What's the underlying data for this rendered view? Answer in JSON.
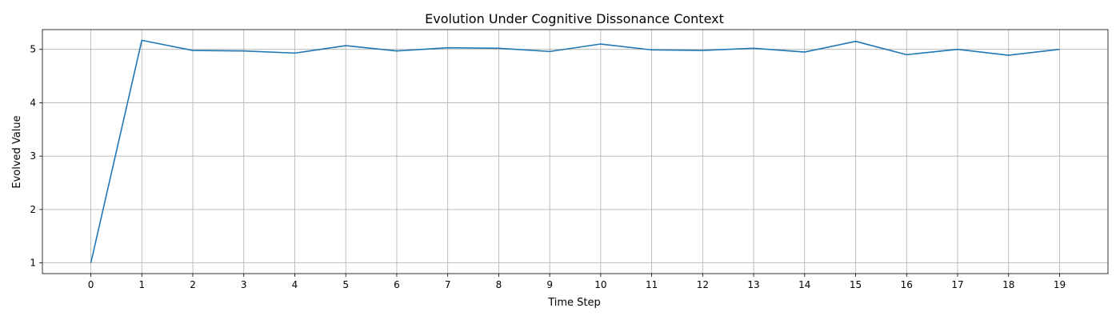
{
  "chart_data": {
    "type": "line",
    "title": "Evolution Under Cognitive Dissonance Context",
    "xlabel": "Time Step",
    "ylabel": "Evolved Value",
    "x": [
      0,
      1,
      2,
      3,
      4,
      5,
      6,
      7,
      8,
      9,
      10,
      11,
      12,
      13,
      14,
      15,
      16,
      17,
      18,
      19
    ],
    "series": [
      {
        "name": "",
        "color": "#1f77b4",
        "values": [
          1.0,
          5.17,
          4.98,
          4.97,
          4.93,
          5.07,
          4.97,
          5.03,
          5.02,
          4.96,
          5.1,
          4.99,
          4.98,
          5.02,
          4.95,
          5.15,
          4.9,
          5.0,
          4.89,
          5.0
        ]
      }
    ],
    "xlim": [
      -0.95,
      19.95
    ],
    "ylim": [
      0.8,
      5.37
    ],
    "x_ticks": [
      0,
      1,
      2,
      3,
      4,
      5,
      6,
      7,
      8,
      9,
      10,
      11,
      12,
      13,
      14,
      15,
      16,
      17,
      18,
      19
    ],
    "y_ticks": [
      1,
      2,
      3,
      4,
      5
    ],
    "grid": true,
    "grid_color": "#b0b0b0",
    "axis_color": "#000000"
  }
}
